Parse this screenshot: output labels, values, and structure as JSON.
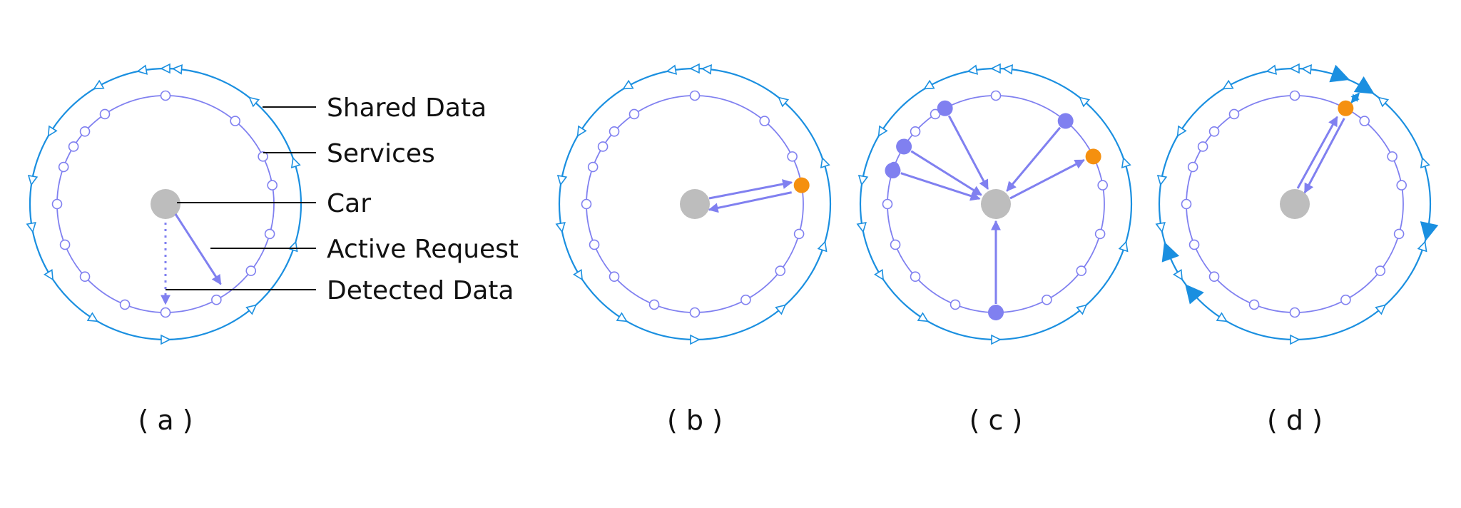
{
  "legend": {
    "shared_data": "Shared Data",
    "services": "Services",
    "car": "Car",
    "active_request": "Active Request",
    "detected_data": "Detected Data"
  },
  "captions": [
    "( a )",
    "( b )",
    "( c )",
    "( d )"
  ],
  "colors": {
    "outer_ring": "#1a8fe0",
    "inner_ring": "#8080f0",
    "car": "#bdbdbd",
    "highlight": "#f5900f",
    "active_service": "#8080f0",
    "label_line": "#111111"
  },
  "panels": [
    {
      "id": "a",
      "outer_marker_style": "open-small",
      "active_services": [],
      "highlight_service": null,
      "arrows": [
        "car-to-service-active",
        "car-to-service-dotted"
      ]
    },
    {
      "id": "b",
      "outer_marker_style": "open-small",
      "active_services": [],
      "highlight_service": "right",
      "arrows": [
        "car-to-highlight",
        "highlight-to-car"
      ]
    },
    {
      "id": "c",
      "outer_marker_style": "open-small",
      "active_services": [
        "upper-left",
        "upper-right",
        "left-1",
        "left-2",
        "bottom"
      ],
      "highlight_service": "right-upper",
      "arrows": [
        "services-to-car",
        "car-to-highlight"
      ]
    },
    {
      "id": "d",
      "outer_marker_style": "filled-large",
      "active_services": [],
      "highlight_service": "upper-right",
      "arrows": [
        "car-to-highlight",
        "highlight-to-car",
        "highlight-to-shared-dotted"
      ]
    }
  ]
}
